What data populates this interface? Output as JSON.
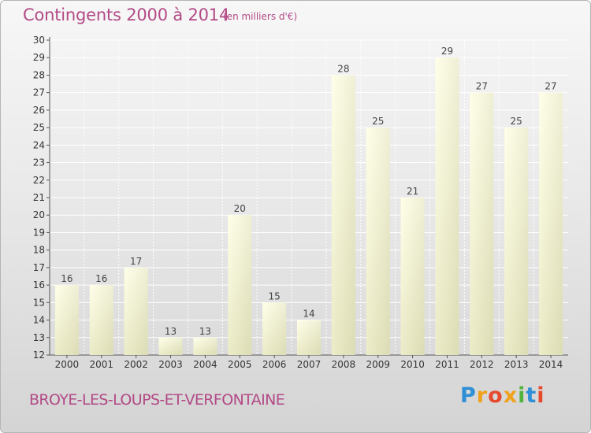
{
  "header": {
    "title": "Contingents 2000 à 2014",
    "unit": "(en milliers d'€)"
  },
  "footer": {
    "commune": "BROYE-LES-LOUPS-ET-VERFONTAINE",
    "brand": "Proxiti"
  },
  "colors": {
    "title": "#b24a86",
    "bar_light": "#ffffd8",
    "bar_dark": "#d8d8b0"
  },
  "chart_data": {
    "type": "bar",
    "title": "Contingents 2000 à 2014",
    "subtitle": "(en milliers d'€)",
    "categories": [
      "2000",
      "2001",
      "2002",
      "2003",
      "2004",
      "2005",
      "2006",
      "2007",
      "2008",
      "2009",
      "2010",
      "2011",
      "2012",
      "2013",
      "2014"
    ],
    "values": [
      16,
      16,
      17,
      13,
      13,
      20,
      15,
      14,
      28,
      25,
      21,
      29,
      27,
      25,
      27
    ],
    "ylim": [
      12,
      30
    ],
    "yticks": [
      12,
      13,
      14,
      15,
      16,
      17,
      18,
      19,
      20,
      21,
      22,
      23,
      24,
      25,
      26,
      27,
      28,
      29,
      30
    ],
    "grid": true,
    "data_labels": true
  }
}
